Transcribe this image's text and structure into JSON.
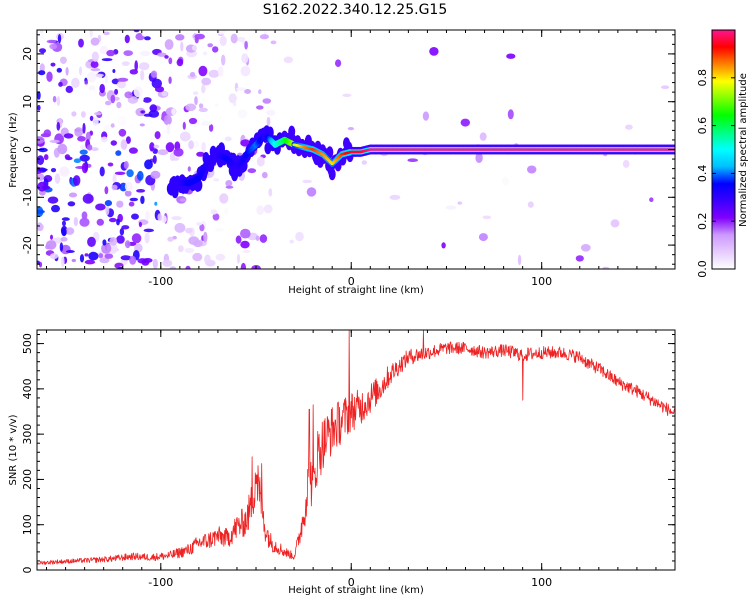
{
  "chart_data": [
    {
      "type": "heatmap",
      "title": "S162.2022.340.12.25.G15",
      "xlabel": "Height of straight line (km)",
      "ylabel": "Frequency (Hz)",
      "xlim": [
        -165,
        170
      ],
      "ylim": [
        -25,
        25
      ],
      "xticks": [
        -100,
        0,
        100
      ],
      "yticks": [
        -20,
        -10,
        0,
        10,
        20
      ],
      "colorbar": {
        "label": "Normalized spectral amplitude",
        "range": [
          0,
          1
        ],
        "ticks": [
          0.0,
          0.2,
          0.4,
          0.6,
          0.8
        ],
        "colors": [
          "#ffffff",
          "#e6ccff",
          "#cc99ff",
          "#8000ff",
          "#3a00ff",
          "#0000ff",
          "#00bfff",
          "#00ffff",
          "#00ff80",
          "#00ff00",
          "#80ff00",
          "#ffff00",
          "#ff8000",
          "#ff0000",
          "#ff1493"
        ]
      },
      "ridge": {
        "x": [
          -95,
          -90,
          -85,
          -80,
          -75,
          -70,
          -65,
          -60,
          -55,
          -50,
          -45,
          -40,
          -35,
          -30,
          -25,
          -20,
          -15,
          -10,
          -5,
          0,
          5,
          10,
          20,
          50,
          100,
          170
        ],
        "y": [
          -8,
          -7,
          -7,
          -6,
          -2,
          -1,
          -2,
          -4,
          -1,
          1,
          3,
          1,
          2,
          1,
          0.5,
          0,
          -1,
          -3,
          -1,
          -0.5,
          -0.5,
          0,
          0,
          0,
          0,
          0
        ],
        "amplitude": [
          0.3,
          0.3,
          0.35,
          0.35,
          0.3,
          0.3,
          0.35,
          0.3,
          0.35,
          0.4,
          0.3,
          0.5,
          0.6,
          0.75,
          0.85,
          0.9,
          0.85,
          0.8,
          0.9,
          0.95,
          0.95,
          1,
          1,
          1,
          1,
          1
        ]
      },
      "grid": false
    },
    {
      "type": "line",
      "xlabel": "Height of straight line (km)",
      "ylabel": "SNR (10 * v/v)",
      "xlim": [
        -165,
        170
      ],
      "ylim": [
        0,
        530
      ],
      "xticks": [
        -100,
        0,
        100
      ],
      "yticks": [
        0,
        100,
        200,
        300,
        400,
        500
      ],
      "series": [
        {
          "color": "#ee2222",
          "x": [
            -165,
            -155,
            -145,
            -135,
            -125,
            -115,
            -105,
            -95,
            -85,
            -80,
            -75,
            -70,
            -65,
            -60,
            -55,
            -52,
            -50,
            -47,
            -45,
            -42,
            -40,
            -35,
            -30,
            -28,
            -25,
            -22,
            -20,
            -18,
            -15,
            -10,
            -5,
            0,
            5,
            10,
            15,
            20,
            25,
            30,
            40,
            50,
            60,
            70,
            80,
            90,
            100,
            110,
            120,
            125,
            130,
            135,
            140,
            150,
            160,
            170
          ],
          "values": [
            15,
            18,
            20,
            22,
            25,
            30,
            28,
            32,
            45,
            60,
            65,
            75,
            70,
            95,
            110,
            150,
            220,
            130,
            90,
            60,
            55,
            40,
            30,
            60,
            120,
            210,
            180,
            250,
            280,
            310,
            330,
            350,
            360,
            380,
            400,
            430,
            450,
            470,
            480,
            490,
            490,
            480,
            485,
            475,
            480,
            480,
            470,
            455,
            445,
            430,
            415,
            395,
            370,
            345
          ],
          "noise": [
            4,
            5,
            5,
            6,
            7,
            8,
            8,
            10,
            14,
            18,
            20,
            22,
            22,
            30,
            35,
            50,
            70,
            45,
            30,
            20,
            18,
            12,
            8,
            20,
            40,
            60,
            55,
            65,
            60,
            55,
            50,
            45,
            40,
            35,
            30,
            25,
            20,
            18,
            16,
            14,
            14,
            14,
            14,
            16,
            14,
            14,
            14,
            14,
            14,
            14,
            14,
            14,
            14,
            14
          ],
          "spikes": [
            {
              "x": -52,
              "y": 250
            },
            {
              "x": -47,
              "y": 235
            },
            {
              "x": -22,
              "y": 355
            },
            {
              "x": -20,
              "y": 365
            },
            {
              "x": -1,
              "y": 528
            },
            {
              "x": 38,
              "y": 530
            },
            {
              "x": 90,
              "y": 375
            }
          ]
        }
      ],
      "grid": false
    }
  ]
}
